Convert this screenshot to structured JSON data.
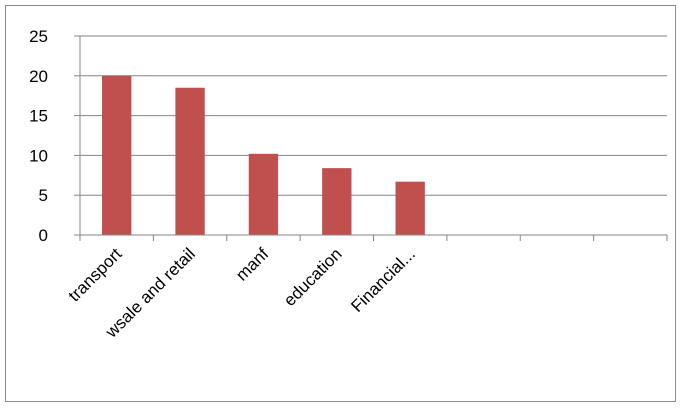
{
  "chart_data": {
    "type": "bar",
    "categories": [
      "transport",
      "wsale and retail",
      "manf",
      "education",
      "Financial...",
      "",
      "",
      ""
    ],
    "values": [
      20,
      18.5,
      10.2,
      8.4,
      6.7,
      null,
      null,
      null
    ],
    "ylim": [
      0,
      25
    ],
    "yticks": [
      0,
      5,
      10,
      15,
      20,
      25
    ],
    "grid": true,
    "legend": "none",
    "bar_color": "#c0504d",
    "grid_color": "#868686",
    "axis_color": "#868686"
  }
}
